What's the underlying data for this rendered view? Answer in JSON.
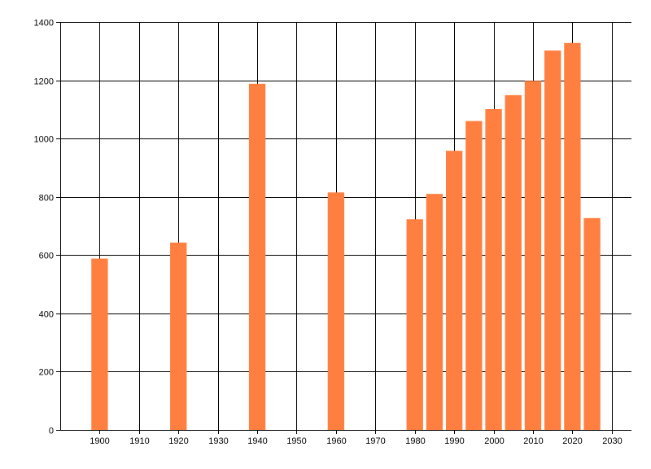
{
  "chart_data": {
    "type": "bar",
    "title": "",
    "xlabel": "",
    "ylabel": "",
    "x": [
      1900,
      1920,
      1940,
      1960,
      1980,
      1985,
      1990,
      1995,
      2000,
      2005,
      2010,
      2015,
      2020,
      2025
    ],
    "values": [
      588,
      643,
      1188,
      815,
      723,
      810,
      958,
      1060,
      1101,
      1149,
      1198,
      1302,
      1328,
      727
    ],
    "xlim": [
      1890,
      2035
    ],
    "ylim": [
      0,
      1400
    ],
    "xticks": [
      1900,
      1910,
      1920,
      1930,
      1940,
      1950,
      1960,
      1970,
      1980,
      1990,
      2000,
      2010,
      2020,
      2030
    ],
    "yticks": [
      0,
      200,
      400,
      600,
      800,
      1000,
      1200,
      1400
    ],
    "grid": true,
    "bar_color": "#ff7f40",
    "grid_color": "#000000",
    "axis_color": "#000000"
  }
}
